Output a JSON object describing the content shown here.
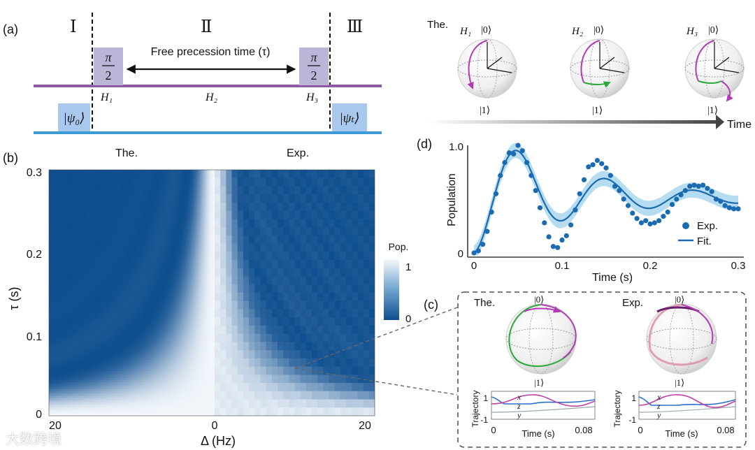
{
  "panel_labels": {
    "a": "(a)",
    "b": "(b)",
    "c": "(c)",
    "d": "(d)"
  },
  "panel_a": {
    "regions": [
      "Ⅰ",
      "Ⅱ",
      "Ⅲ"
    ],
    "free_precession": "Free precession time (τ)",
    "pulse_num": "π",
    "pulse_den": "2",
    "h1": "H₁",
    "h2": "H₂",
    "h3": "H₃",
    "psi0": "|ψ₀⟩",
    "psit": "|ψₜ⟩",
    "colors": {
      "purple_line": "#8e5aa8",
      "blue_line": "#3d9bd6",
      "pulse_box": "#b9b6d8",
      "state_box": "#a8c8ee"
    }
  },
  "bloch_top": {
    "label": "The.",
    "spheres": [
      {
        "h": "H₁",
        "ket0": "|0⟩",
        "ket1": "|1⟩"
      },
      {
        "h": "H₂",
        "ket0": "|0⟩",
        "ket1": "|1⟩"
      },
      {
        "h": "H₃",
        "ket0": "|0⟩",
        "ket1": "|1⟩"
      }
    ],
    "time_label": "Time"
  },
  "panel_b": {
    "the_label": "The.",
    "exp_label": "Exp.",
    "ylabel": "τ (s)",
    "xlabel": "Δ (Hz)",
    "yticks": [
      "0",
      "0.1",
      "0.2",
      "0.3"
    ],
    "xticks": [
      "20",
      "0",
      "20"
    ],
    "colorbar": {
      "title": "Pop.",
      "max": "1",
      "min": "0"
    },
    "colors": {
      "dark": "#0f4f8f",
      "light": "#f2f6fb"
    }
  },
  "panel_c": {
    "the": {
      "label": "The.",
      "ket0": "|0⟩",
      "ket1": "|1⟩"
    },
    "exp": {
      "label": "Exp.",
      "ket0": "|0⟩",
      "ket1": "|1⟩"
    },
    "traj_ylabel": "Trajectory",
    "traj_xlabel": "Time (s)",
    "traj_xticks": [
      "0",
      "0.08"
    ],
    "traj_yticks": [
      "1",
      "-1"
    ],
    "traj_legend": [
      "x",
      "z",
      "y"
    ]
  },
  "chart_data": {
    "type": "scatter",
    "title": "",
    "xlabel": "Time (s)",
    "ylabel": "Population",
    "xlim": [
      0,
      0.3
    ],
    "ylim": [
      0,
      1.0
    ],
    "xticks": [
      "0",
      "0.1",
      "0.2",
      "0.3"
    ],
    "yticks": [
      "0",
      "1.0"
    ],
    "legend": [
      "Exp.",
      "Fit."
    ],
    "series": [
      {
        "name": "Exp.",
        "kind": "points",
        "x": [
          0,
          0.005,
          0.01,
          0.015,
          0.02,
          0.025,
          0.03,
          0.035,
          0.04,
          0.045,
          0.05,
          0.055,
          0.06,
          0.065,
          0.07,
          0.075,
          0.08,
          0.085,
          0.09,
          0.095,
          0.1,
          0.105,
          0.11,
          0.115,
          0.12,
          0.125,
          0.13,
          0.135,
          0.14,
          0.145,
          0.15,
          0.155,
          0.16,
          0.165,
          0.17,
          0.175,
          0.18,
          0.185,
          0.19,
          0.195,
          0.2,
          0.205,
          0.21,
          0.215,
          0.22,
          0.225,
          0.23,
          0.235,
          0.24,
          0.245,
          0.25,
          0.255,
          0.26,
          0.265,
          0.27,
          0.275,
          0.28,
          0.285,
          0.29,
          0.295,
          0.3
        ],
        "y": [
          0.0,
          0.02,
          0.08,
          0.2,
          0.38,
          0.55,
          0.72,
          0.84,
          0.93,
          0.92,
          1.0,
          0.95,
          0.84,
          0.72,
          0.58,
          0.42,
          0.28,
          0.15,
          0.06,
          0.05,
          0.12,
          0.16,
          0.26,
          0.4,
          0.55,
          0.68,
          0.8,
          0.82,
          0.86,
          0.83,
          0.79,
          0.72,
          0.62,
          0.58,
          0.5,
          0.44,
          0.37,
          0.32,
          0.28,
          0.3,
          0.27,
          0.28,
          0.3,
          0.34,
          0.38,
          0.45,
          0.5,
          0.54,
          0.58,
          0.62,
          0.63,
          0.62,
          0.63,
          0.6,
          0.57,
          0.5,
          0.48,
          0.44,
          0.42,
          0.41,
          0.41
        ]
      },
      {
        "name": "Fit.",
        "kind": "line",
        "decay": 8.0,
        "period": 0.1
      }
    ],
    "colors": {
      "points": "#1a6bb0",
      "line": "#1a6bb0",
      "band": "#a9d6f0"
    }
  },
  "watermark": "大数跨境"
}
